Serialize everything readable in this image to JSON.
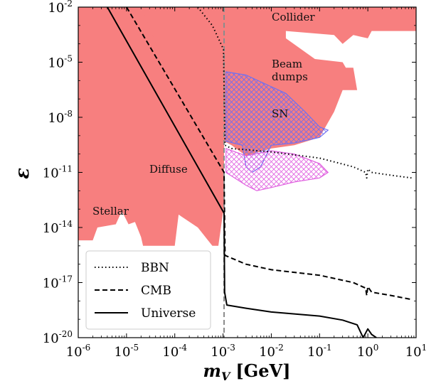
{
  "chart_data": {
    "type": "line",
    "xlabel_symbol": "m",
    "xlabel_subscript": "V",
    "xlabel_unit": "[GeV]",
    "ylabel": "ε",
    "xscale": "log",
    "yscale": "log",
    "xlim": [
      1e-06,
      10
    ],
    "ylim": [
      1e-20,
      0.01
    ],
    "x_tick_exponents": [
      "-6",
      "-5",
      "-4",
      "-3",
      "-2",
      "-1",
      "0",
      "1"
    ],
    "y_tick_exponents": [
      "-20",
      "-17",
      "-14",
      "-11",
      "-8",
      "-5",
      "-2"
    ],
    "tick_base": "10",
    "vertical_marker": {
      "x": 0.00105,
      "style": "dashed",
      "color": "#8c8c8c"
    },
    "regions": [
      {
        "label": "Stellar",
        "color": "#f77f7f",
        "boundary": [
          [
            1e-06,
            0.01
          ],
          [
            1e-06,
            2e-15
          ],
          [
            2e-06,
            2e-15
          ],
          [
            2.5e-06,
            1e-14
          ],
          [
            6e-06,
            1.5e-14
          ],
          [
            8e-06,
            8e-14
          ],
          [
            1.1e-05,
            1.5e-14
          ],
          [
            1.5e-05,
            2e-14
          ],
          [
            2e-05,
            3e-15
          ],
          [
            2.2e-05,
            1e-15
          ],
          [
            0.0001,
            1e-15
          ],
          [
            0.00012,
            5e-14
          ],
          [
            0.0003,
            1e-14
          ],
          [
            0.0006,
            1e-15
          ],
          [
            0.0008,
            1e-15
          ],
          [
            0.00102,
            1e-13
          ],
          [
            0.00102,
            0.01
          ]
        ]
      },
      {
        "label": "Diffuse",
        "color": "#f77f7f",
        "boundary": [
          [
            2e-05,
            0.01
          ],
          [
            0.00105,
            0.01
          ],
          [
            0.00105,
            1e-13
          ],
          [
            2e-05,
            0.01
          ]
        ]
      },
      {
        "label": "Beam\ndumps",
        "color": "#f77f7f",
        "boundary": [
          [
            0.00105,
            0.01
          ],
          [
            0.02,
            0.01
          ],
          [
            0.02,
            0.0002
          ],
          [
            0.08,
            1.5e-05
          ],
          [
            0.3,
            1e-05
          ],
          [
            0.35,
            5e-06
          ],
          [
            0.5,
            5e-06
          ],
          [
            0.6,
            3e-07
          ],
          [
            0.3,
            3e-07
          ],
          [
            0.2,
            2e-08
          ],
          [
            0.1,
            8e-10
          ],
          [
            0.03,
            3e-10
          ],
          [
            0.01,
            2e-10
          ],
          [
            0.003,
            8e-11
          ],
          [
            0.0015,
            3e-10
          ],
          [
            0.00105,
            5e-10
          ]
        ]
      },
      {
        "label": "Collider",
        "color": "#f77f7f",
        "boundary": [
          [
            0.01,
            0.01
          ],
          [
            10,
            0.01
          ],
          [
            10,
            0.0005
          ],
          [
            1.2,
            0.0005
          ],
          [
            1,
            0.0002
          ],
          [
            0.5,
            0.0003
          ],
          [
            0.3,
            0.0001
          ],
          [
            0.2,
            0.0003
          ],
          [
            0.02,
            0.0005
          ],
          [
            0.01,
            0.01
          ]
        ]
      },
      {
        "label": "SN",
        "color": "#7070f0",
        "hatch": true,
        "boundary": [
          [
            0.00115,
            3e-06
          ],
          [
            0.003,
            2e-06
          ],
          [
            0.02,
            2e-07
          ],
          [
            0.05,
            2e-08
          ],
          [
            0.1,
            3e-09
          ],
          [
            0.15,
            2e-09
          ],
          [
            0.1,
            8e-10
          ],
          [
            0.03,
            4e-10
          ],
          [
            0.01,
            3e-10
          ],
          [
            0.006,
            2e-11
          ],
          [
            0.004,
            1e-11
          ],
          [
            0.003,
            2e-11
          ],
          [
            0.0025,
            3e-10
          ],
          [
            0.00115,
            5e-10
          ]
        ]
      },
      {
        "label": "",
        "color": "#e060e0",
        "hatch": true,
        "boundary": [
          [
            0.00115,
            2e-10
          ],
          [
            0.003,
            8e-11
          ],
          [
            0.01,
            1.5e-10
          ],
          [
            0.03,
            1e-10
          ],
          [
            0.1,
            3e-11
          ],
          [
            0.15,
            1e-11
          ],
          [
            0.1,
            5e-12
          ],
          [
            0.03,
            3e-12
          ],
          [
            0.01,
            1.5e-12
          ],
          [
            0.005,
            1e-12
          ],
          [
            0.003,
            2e-12
          ],
          [
            0.00115,
            1e-11
          ]
        ]
      }
    ],
    "series": [
      {
        "name": "BBN",
        "style": "dotted",
        "points": [
          [
            0.0003,
            0.01
          ],
          [
            0.0006,
            0.001
          ],
          [
            0.0008,
            0.0002
          ],
          [
            0.00102,
            5e-05
          ],
          [
            0.0011,
            3e-10
          ],
          [
            0.0015,
            2e-10
          ],
          [
            0.01,
            1.3e-10
          ],
          [
            0.1,
            6e-11
          ],
          [
            0.5,
            2e-11
          ],
          [
            0.9,
            1e-11
          ],
          [
            0.95,
            5e-12
          ],
          [
            1.0,
            1.5e-11
          ],
          [
            1.2,
            1e-11
          ],
          [
            3,
            7e-12
          ],
          [
            8,
            5e-12
          ]
        ]
      },
      {
        "name": "CMB",
        "style": "dashed",
        "points": [
          [
            1e-05,
            0.01
          ],
          [
            0.00105,
            1e-11
          ],
          [
            0.0011,
            3e-16
          ],
          [
            0.003,
            1e-16
          ],
          [
            0.01,
            5e-17
          ],
          [
            0.1,
            2.5e-17
          ],
          [
            0.5,
            1e-17
          ],
          [
            0.9,
            5e-18
          ],
          [
            0.95,
            2e-18
          ],
          [
            1.0,
            6e-18
          ],
          [
            1.2,
            3e-18
          ],
          [
            3,
            2e-18
          ],
          [
            8,
            1.2e-18
          ]
        ]
      },
      {
        "name": "Universe",
        "style": "solid",
        "points": [
          [
            4e-06,
            0.01
          ],
          [
            0.00105,
            6e-14
          ],
          [
            0.00108,
            3e-18
          ],
          [
            0.0012,
            6e-19
          ],
          [
            0.003,
            4e-19
          ],
          [
            0.01,
            2.5e-19
          ],
          [
            0.1,
            1.5e-19
          ],
          [
            0.3,
            9e-20
          ],
          [
            0.6,
            5e-20
          ],
          [
            0.8,
            1e-20
          ],
          [
            1.0,
            3e-20
          ],
          [
            1.2,
            1.5e-20
          ],
          [
            1.5,
            1e-20
          ]
        ]
      }
    ],
    "legend_placement": "bottom-left"
  }
}
